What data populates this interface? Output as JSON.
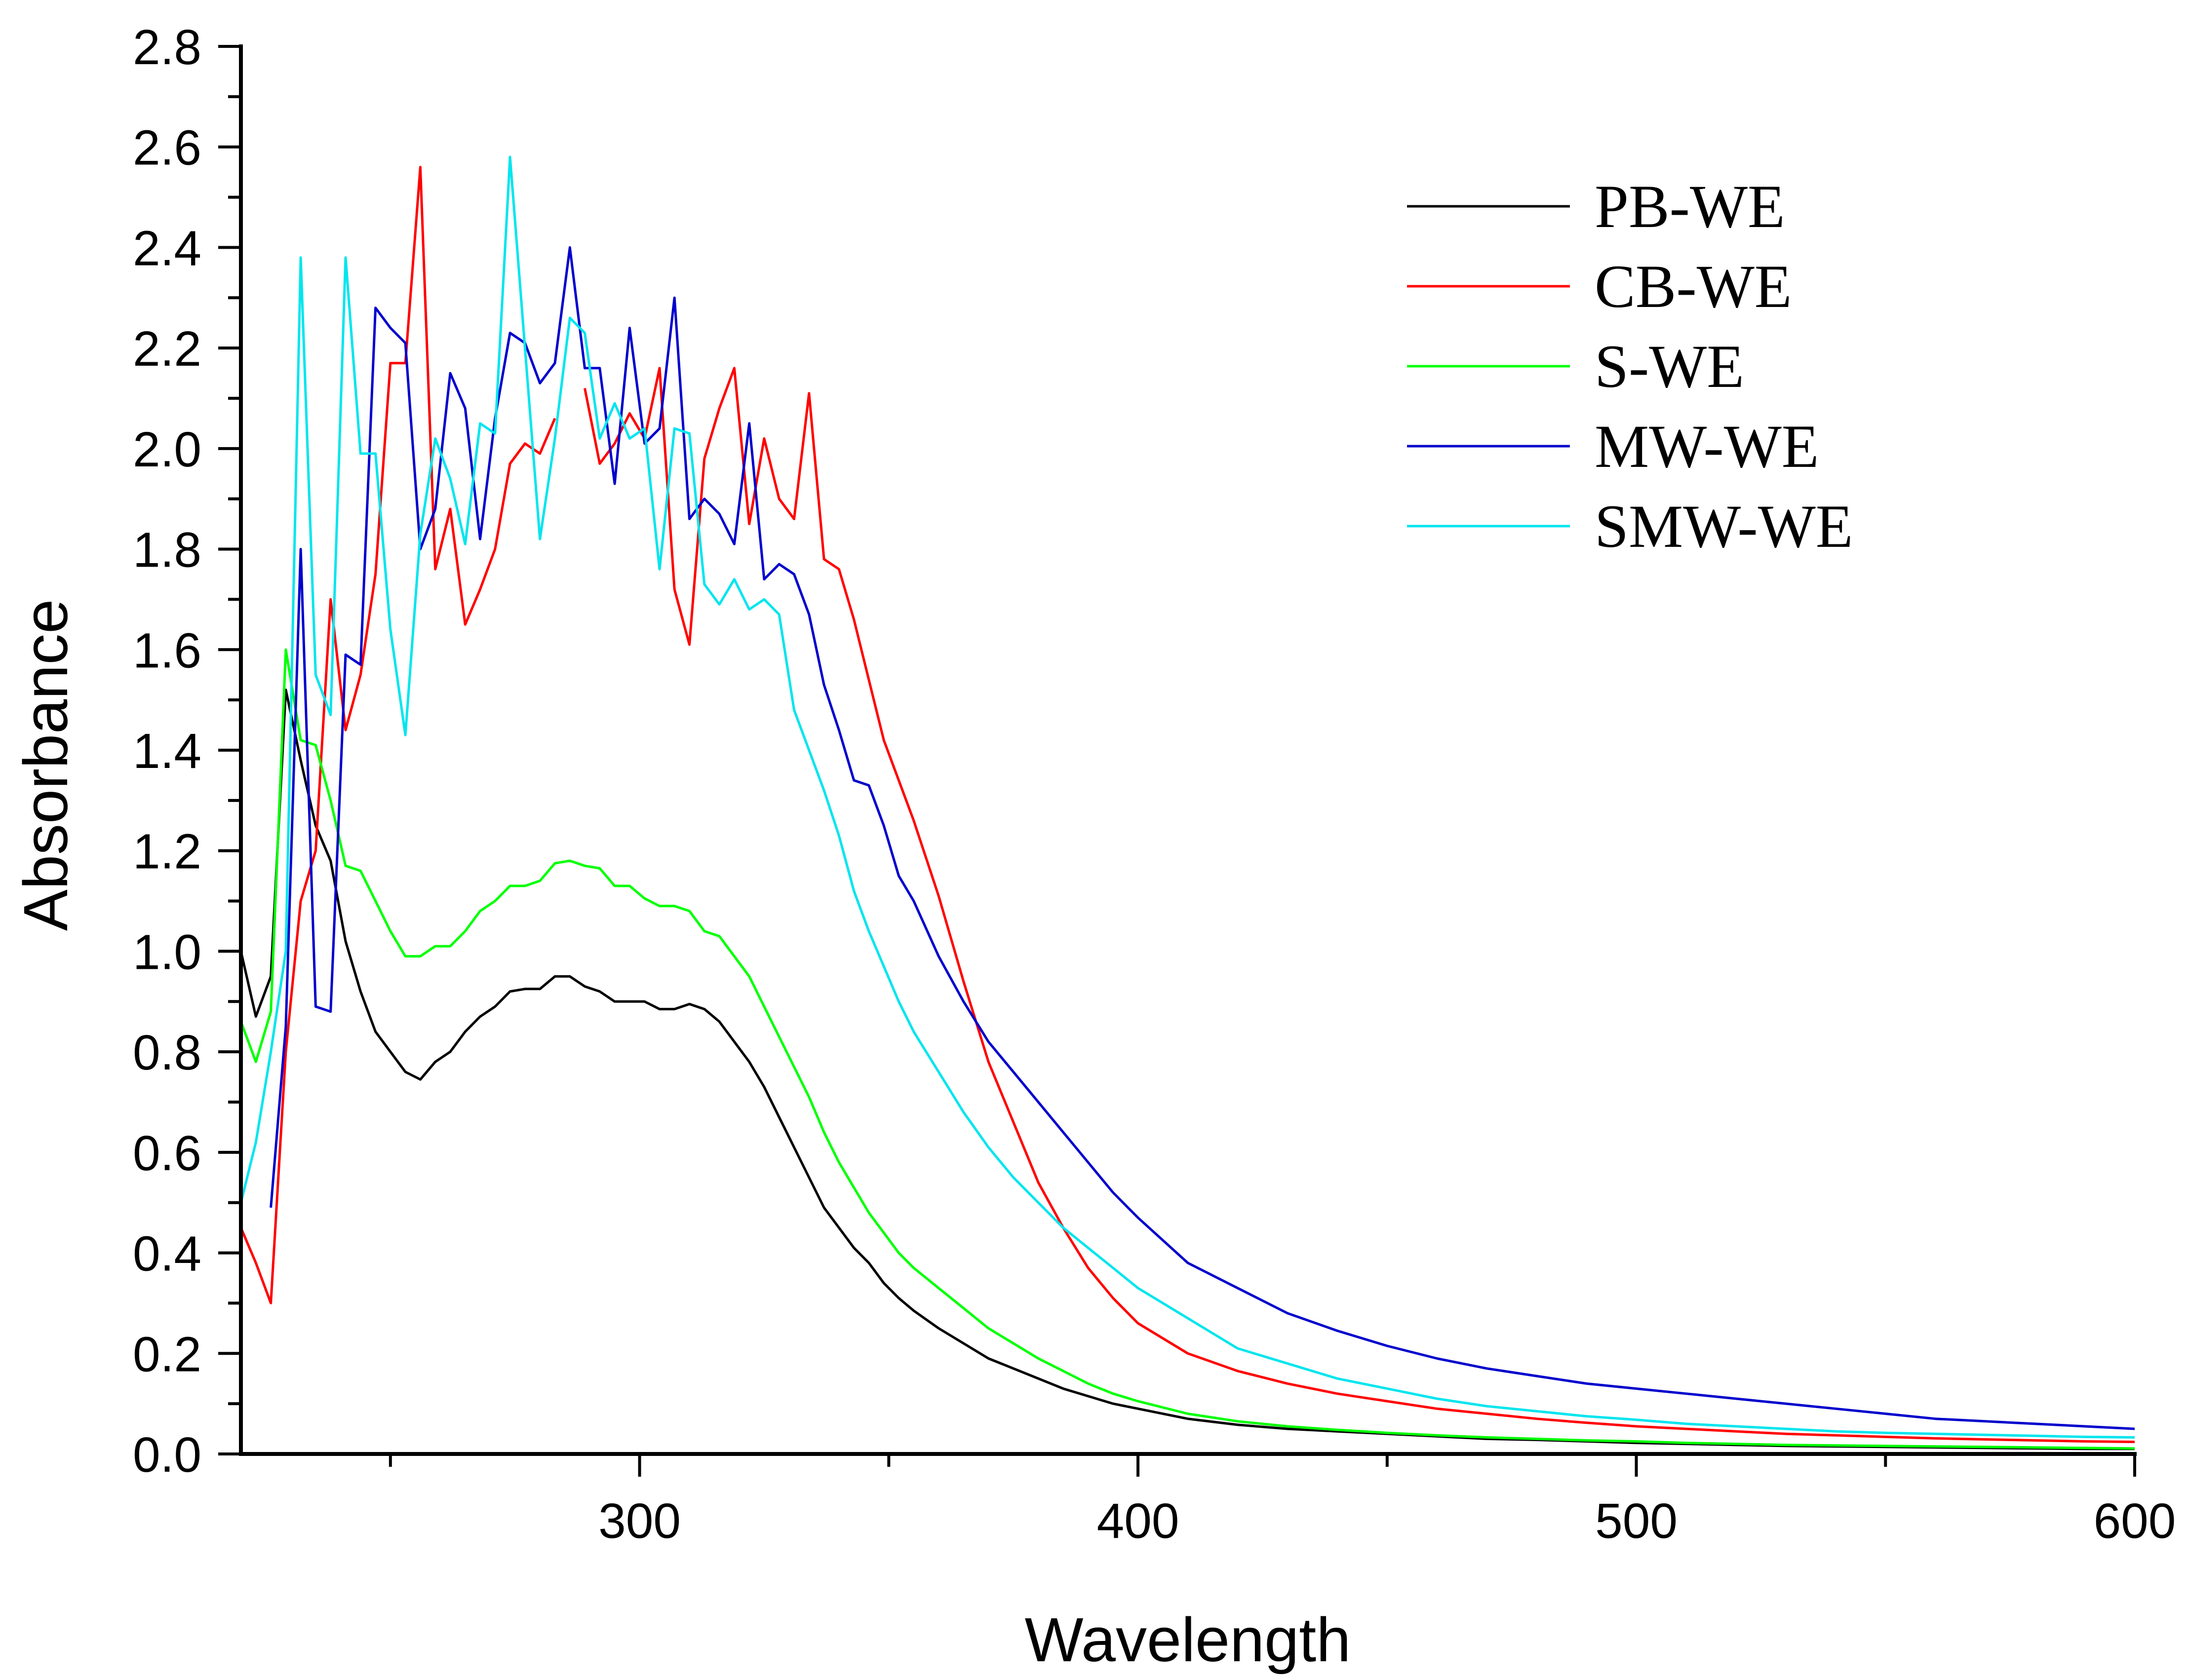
{
  "chart_data": {
    "type": "line",
    "title": "",
    "xlabel": "Wavelength",
    "ylabel": "Absorbance",
    "xlim": [
      220,
      600
    ],
    "ylim": [
      0,
      2.8
    ],
    "x_ticks": [
      "300",
      "400",
      "500",
      "600"
    ],
    "y_ticks": [
      "0.0",
      "0.2",
      "0.4",
      "0.6",
      "0.8",
      "1.0",
      "1.2",
      "1.4",
      "1.6",
      "1.8",
      "2.0",
      "2.2",
      "2.4",
      "2.6",
      "2.8"
    ],
    "x_tick_values": [
      300,
      400,
      500,
      600
    ],
    "y_tick_values": [
      0,
      0.2,
      0.4,
      0.6,
      0.8,
      1.0,
      1.2,
      1.4,
      1.6,
      1.8,
      2.0,
      2.2,
      2.4,
      2.6,
      2.8
    ],
    "grid": false,
    "legend_position": "top-right",
    "series": [
      {
        "name": "PB-WE",
        "color": "#000000",
        "x": [
          220,
          223,
          226,
          229,
          232,
          235,
          238,
          241,
          244,
          247,
          250,
          253,
          256,
          259,
          262,
          265,
          268,
          271,
          274,
          277,
          280,
          283,
          286,
          289,
          292,
          295,
          298,
          301,
          304,
          307,
          310,
          313,
          316,
          319,
          322,
          325,
          328,
          331,
          334,
          337,
          340,
          343,
          346,
          349,
          352,
          355,
          360,
          365,
          370,
          375,
          380,
          385,
          390,
          395,
          400,
          410,
          420,
          430,
          440,
          450,
          460,
          470,
          480,
          490,
          500,
          510,
          520,
          530,
          540,
          550,
          560,
          570,
          580,
          590,
          600
        ],
        "y": [
          1.0,
          0.87,
          0.95,
          1.52,
          1.38,
          1.25,
          1.18,
          1.02,
          0.92,
          0.84,
          0.8,
          0.76,
          0.745,
          0.78,
          0.8,
          0.84,
          0.87,
          0.89,
          0.92,
          0.925,
          0.925,
          0.95,
          0.95,
          0.93,
          0.92,
          0.9,
          0.9,
          0.9,
          0.885,
          0.885,
          0.895,
          0.885,
          0.86,
          0.82,
          0.78,
          0.73,
          0.67,
          0.61,
          0.55,
          0.49,
          0.45,
          0.41,
          0.38,
          0.34,
          0.31,
          0.285,
          0.25,
          0.22,
          0.19,
          0.17,
          0.15,
          0.13,
          0.115,
          0.1,
          0.09,
          0.07,
          0.058,
          0.05,
          0.045,
          0.04,
          0.035,
          0.03,
          0.028,
          0.025,
          0.022,
          0.02,
          0.018,
          0.016,
          0.015,
          0.014,
          0.013,
          0.012,
          0.011,
          0.01,
          0.01
        ]
      },
      {
        "name": "CB-WE",
        "color": "#ff0000",
        "x": [
          220,
          223,
          226,
          229,
          232,
          235,
          238,
          241,
          244,
          247,
          250,
          253,
          256,
          259,
          262,
          265,
          268,
          271,
          274,
          277,
          280,
          283,
          286,
          289,
          292,
          295,
          298,
          301,
          304,
          307,
          310,
          313,
          316,
          319,
          322,
          325,
          328,
          331,
          334,
          337,
          340,
          343,
          346,
          349,
          352,
          355,
          360,
          365,
          370,
          375,
          380,
          385,
          390,
          395,
          400,
          410,
          420,
          430,
          440,
          450,
          460,
          470,
          480,
          490,
          500,
          510,
          520,
          530,
          540,
          550,
          560,
          570,
          580,
          590,
          600
        ],
        "y": [
          0.45,
          0.38,
          0.3,
          0.8,
          1.1,
          1.2,
          1.7,
          1.44,
          1.55,
          1.75,
          2.17,
          2.17,
          2.56,
          1.76,
          1.88,
          1.65,
          1.72,
          1.8,
          1.97,
          2.01,
          1.99,
          2.06,
          null,
          2.12,
          1.97,
          2.01,
          2.07,
          2.02,
          2.16,
          1.72,
          1.61,
          1.98,
          2.08,
          2.16,
          1.85,
          2.02,
          1.9,
          1.86,
          2.11,
          1.78,
          1.76,
          1.66,
          1.54,
          1.42,
          1.34,
          1.26,
          1.11,
          0.94,
          0.78,
          0.66,
          0.54,
          0.45,
          0.37,
          0.31,
          0.26,
          0.2,
          0.165,
          0.14,
          0.12,
          0.105,
          0.09,
          0.08,
          0.07,
          0.062,
          0.055,
          0.05,
          0.045,
          0.04,
          0.037,
          0.034,
          0.031,
          0.029,
          0.027,
          0.025,
          0.024
        ]
      },
      {
        "name": "S-WE",
        "color": "#00ff00",
        "x": [
          220,
          223,
          226,
          229,
          232,
          235,
          238,
          241,
          244,
          247,
          250,
          253,
          256,
          259,
          262,
          265,
          268,
          271,
          274,
          277,
          280,
          283,
          286,
          289,
          292,
          295,
          298,
          301,
          304,
          307,
          310,
          313,
          316,
          319,
          322,
          325,
          328,
          331,
          334,
          337,
          340,
          343,
          346,
          349,
          352,
          355,
          360,
          365,
          370,
          375,
          380,
          385,
          390,
          395,
          400,
          410,
          420,
          430,
          440,
          450,
          460,
          470,
          480,
          490,
          500,
          510,
          520,
          530,
          540,
          550,
          560,
          570,
          580,
          590,
          600
        ],
        "y": [
          0.86,
          0.78,
          0.88,
          1.6,
          1.42,
          1.41,
          1.3,
          1.17,
          1.16,
          1.1,
          1.04,
          0.99,
          0.99,
          1.01,
          1.01,
          1.04,
          1.08,
          1.1,
          1.13,
          1.13,
          1.14,
          1.175,
          1.18,
          1.17,
          1.165,
          1.13,
          1.13,
          1.105,
          1.09,
          1.09,
          1.08,
          1.04,
          1.03,
          0.99,
          0.95,
          0.89,
          0.83,
          0.77,
          0.71,
          0.64,
          0.58,
          0.53,
          0.48,
          0.44,
          0.4,
          0.37,
          0.33,
          0.29,
          0.25,
          0.22,
          0.19,
          0.165,
          0.14,
          0.12,
          0.105,
          0.08,
          0.065,
          0.055,
          0.048,
          0.042,
          0.037,
          0.033,
          0.03,
          0.027,
          0.025,
          0.022,
          0.02,
          0.018,
          0.017,
          0.016,
          0.015,
          0.014,
          0.013,
          0.012,
          0.011
        ]
      },
      {
        "name": "MW-WE",
        "color": "#0000cc",
        "x": [
          226,
          229,
          232,
          235,
          238,
          241,
          244,
          247,
          250,
          253,
          256,
          259,
          262,
          265,
          268,
          271,
          274,
          277,
          280,
          283,
          286,
          289,
          292,
          295,
          298,
          301,
          304,
          307,
          310,
          313,
          316,
          319,
          322,
          325,
          328,
          331,
          334,
          337,
          340,
          343,
          346,
          349,
          352,
          355,
          360,
          365,
          370,
          375,
          380,
          385,
          390,
          395,
          400,
          410,
          420,
          430,
          440,
          450,
          460,
          470,
          480,
          490,
          500,
          510,
          520,
          530,
          540,
          550,
          560,
          570,
          580,
          590,
          600
        ],
        "y": [
          0.49,
          0.85,
          1.8,
          0.89,
          0.88,
          1.59,
          1.57,
          2.28,
          2.24,
          2.21,
          1.8,
          1.88,
          2.15,
          2.08,
          1.82,
          2.06,
          2.23,
          2.21,
          2.13,
          2.17,
          2.4,
          2.16,
          2.16,
          1.93,
          2.24,
          2.01,
          2.04,
          2.3,
          1.86,
          1.9,
          1.87,
          1.81,
          2.05,
          1.74,
          1.77,
          1.75,
          1.67,
          1.53,
          1.44,
          1.34,
          1.33,
          1.25,
          1.15,
          1.1,
          0.99,
          0.9,
          0.82,
          0.76,
          0.7,
          0.64,
          0.58,
          0.52,
          0.47,
          0.38,
          0.33,
          0.28,
          0.245,
          0.215,
          0.19,
          0.17,
          0.155,
          0.14,
          0.13,
          0.12,
          0.11,
          0.1,
          0.09,
          0.08,
          0.07,
          0.065,
          0.06,
          0.055,
          0.05
        ]
      },
      {
        "name": "SMW-WE",
        "color": "#00e5ee",
        "x": [
          220,
          223,
          226,
          229,
          232,
          235,
          238,
          241,
          244,
          247,
          250,
          253,
          256,
          259,
          262,
          265,
          268,
          271,
          274,
          277,
          280,
          283,
          286,
          289,
          292,
          295,
          298,
          301,
          304,
          307,
          310,
          313,
          316,
          319,
          322,
          325,
          328,
          331,
          334,
          337,
          340,
          343,
          346,
          349,
          352,
          355,
          360,
          365,
          370,
          375,
          380,
          385,
          390,
          395,
          400,
          410,
          420,
          430,
          440,
          450,
          460,
          470,
          480,
          490,
          500,
          510,
          520,
          530,
          540,
          550,
          560,
          570,
          580,
          590,
          600
        ],
        "y": [
          0.5,
          0.62,
          0.8,
          1.0,
          2.38,
          1.55,
          1.47,
          2.38,
          1.99,
          1.99,
          1.64,
          1.43,
          1.83,
          2.02,
          1.94,
          1.81,
          2.05,
          2.03,
          2.58,
          2.2,
          1.82,
          2.02,
          2.26,
          2.23,
          2.02,
          2.09,
          2.02,
          2.04,
          1.76,
          2.04,
          2.03,
          1.73,
          1.69,
          1.74,
          1.68,
          1.7,
          1.67,
          1.48,
          1.4,
          1.32,
          1.23,
          1.12,
          1.04,
          0.97,
          0.9,
          0.84,
          0.76,
          0.68,
          0.61,
          0.55,
          0.5,
          0.45,
          0.41,
          0.37,
          0.33,
          0.27,
          0.21,
          0.18,
          0.15,
          0.13,
          0.11,
          0.095,
          0.085,
          0.075,
          0.068,
          0.06,
          0.055,
          0.05,
          0.045,
          0.042,
          0.04,
          0.038,
          0.036,
          0.034,
          0.033
        ]
      }
    ]
  }
}
